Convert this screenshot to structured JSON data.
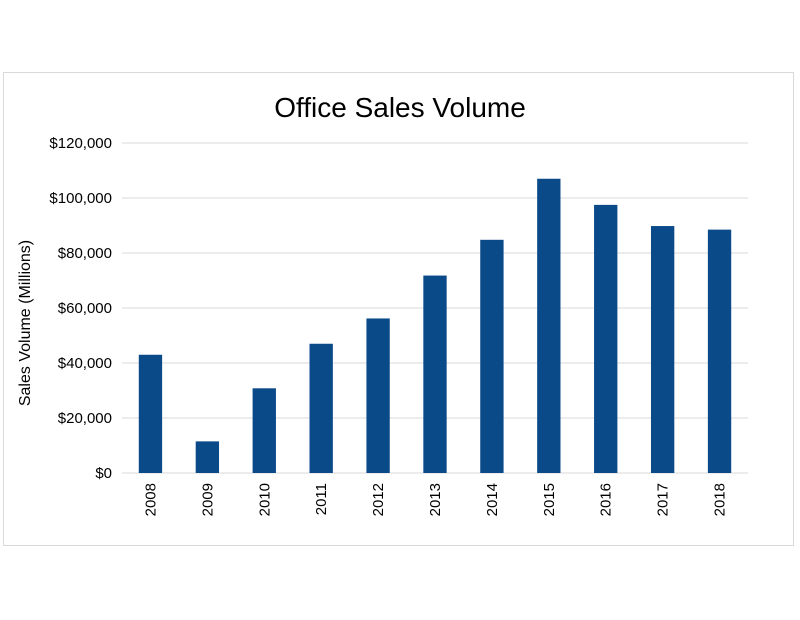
{
  "chart_data": {
    "type": "bar",
    "title": "Office Sales Volume",
    "xlabel": "",
    "ylabel": "Sales Volume (Millions)",
    "categories": [
      "2008",
      "2009",
      "2010",
      "2011",
      "2012",
      "2013",
      "2014",
      "2015",
      "2016",
      "2017",
      "2018"
    ],
    "values": [
      43000,
      11500,
      30800,
      47000,
      56200,
      71800,
      84800,
      107000,
      97500,
      89800,
      88500
    ],
    "ylim": [
      0,
      120000
    ],
    "yticks": [
      0,
      20000,
      40000,
      60000,
      80000,
      100000,
      120000
    ],
    "ytick_labels": [
      "$0",
      "$20,000",
      "$40,000",
      "$60,000",
      "$80,000",
      "$100,000",
      "$120,000"
    ],
    "grid": true,
    "legend": "none",
    "bar_color": "#0b4a89",
    "grid_color": "#d9d9d9"
  }
}
